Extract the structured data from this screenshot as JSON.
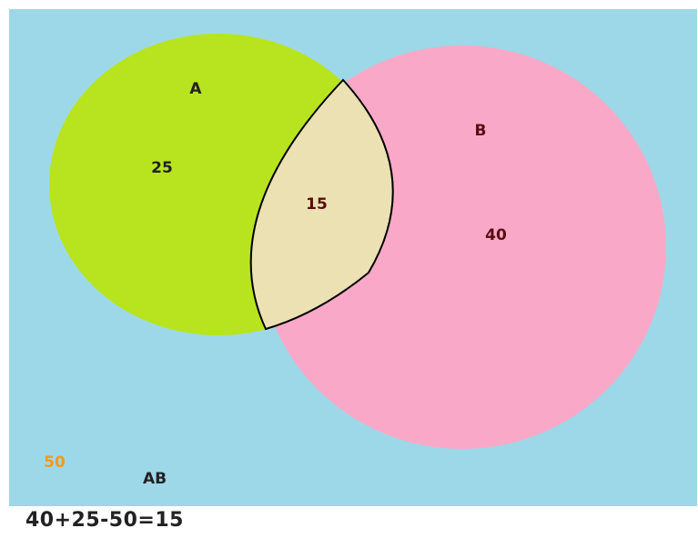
{
  "diagram": {
    "set_a": {
      "name": "A",
      "only_value": "25"
    },
    "set_b": {
      "name": "B",
      "only_value": "40"
    },
    "intersection_value": "15",
    "outside_value": "50",
    "outside_label": "AB"
  },
  "equation": "40+25-50=15",
  "colors": {
    "background": "#9dd8e8",
    "set_a": "#b8e41f",
    "set_b": "#f9a9c7",
    "intersection": "#ebe1b2",
    "outside_value": "#f29a1a",
    "label_dark": "#222222",
    "label_b": "#5a0a14"
  }
}
